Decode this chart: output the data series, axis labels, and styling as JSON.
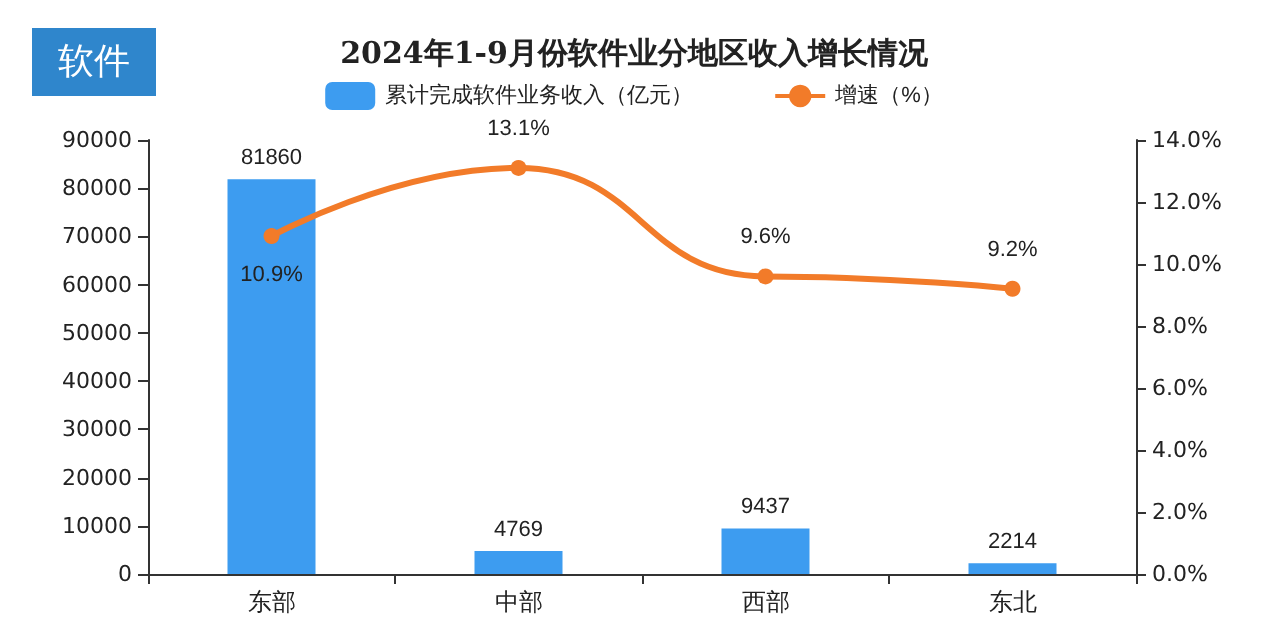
{
  "chart_data": {
    "type": "bar",
    "title": "2024年1-9月份软件业分地区收入增长情况",
    "annotations": [
      "软件"
    ],
    "categories": [
      "东部",
      "中部",
      "西部",
      "东北"
    ],
    "series": [
      {
        "name": "累计完成软件业务收入（亿元）",
        "color": "#3d9cf0",
        "values": [
          81860,
          4769,
          9437,
          2214
        ],
        "value_labels": [
          "81860",
          "4769",
          "9437",
          "2214"
        ]
      },
      {
        "name": "增速（%）",
        "type": "line",
        "axis": "y2",
        "color": "#f27b29",
        "values": [
          10.9,
          13.1,
          9.6,
          9.2
        ],
        "value_labels": [
          "10.9%",
          "13.1%",
          "9.6%",
          "9.2%"
        ]
      }
    ],
    "ylim": [
      0,
      90000
    ],
    "yticks": [
      0,
      10000,
      20000,
      30000,
      40000,
      50000,
      60000,
      70000,
      80000,
      90000
    ],
    "y2lim": [
      0,
      14
    ],
    "y2ticks": [
      {
        "value": 0,
        "label": "0.0%"
      },
      {
        "value": 2,
        "label": "2.0%"
      },
      {
        "value": 4,
        "label": "4.0%"
      },
      {
        "value": 6,
        "label": "6.0%"
      },
      {
        "value": 8,
        "label": "8.0%"
      },
      {
        "value": 10,
        "label": "10.0%"
      },
      {
        "value": 12,
        "label": "12.0%"
      },
      {
        "value": 14,
        "label": "14.0%"
      }
    ],
    "legend": "top",
    "marker": "circle",
    "grid": false
  }
}
